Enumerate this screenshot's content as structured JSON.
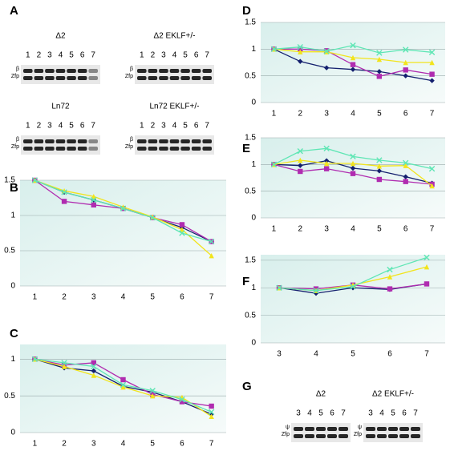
{
  "chart_data": [
    {
      "panel": "B",
      "type": "line",
      "categories": [
        1,
        2,
        3,
        4,
        5,
        6,
        7
      ],
      "ylim": [
        0,
        1.5
      ],
      "yticks": [
        0,
        0.5,
        1,
        1.5
      ],
      "grid": true,
      "series": [
        {
          "color": "#14206e",
          "marker": "diamond",
          "values": [
            1.5,
            1.33,
            1.22,
            1.1,
            0.97,
            0.83,
            0.63
          ]
        },
        {
          "color": "#b02cb0",
          "marker": "square",
          "values": [
            1.5,
            1.2,
            1.15,
            1.1,
            0.97,
            0.87,
            0.63
          ]
        },
        {
          "color": "#f2e41c",
          "marker": "triangle",
          "values": [
            1.5,
            1.35,
            1.27,
            1.12,
            0.98,
            0.8,
            0.43
          ]
        },
        {
          "color": "#5ee6b4",
          "marker": "x",
          "values": [
            1.5,
            1.33,
            1.22,
            1.1,
            0.97,
            0.75,
            0.63
          ]
        }
      ]
    },
    {
      "panel": "C",
      "type": "line",
      "categories": [
        1,
        2,
        3,
        4,
        5,
        6,
        7
      ],
      "ylim": [
        0,
        1.2
      ],
      "yticks": [
        0,
        0.5,
        1
      ],
      "grid": true,
      "series": [
        {
          "color": "#14206e",
          "marker": "diamond",
          "values": [
            1,
            0.88,
            0.84,
            0.63,
            0.55,
            0.42,
            0.25
          ]
        },
        {
          "color": "#b02cb0",
          "marker": "square",
          "values": [
            1,
            0.92,
            0.95,
            0.72,
            0.52,
            0.42,
            0.36
          ]
        },
        {
          "color": "#f2e41c",
          "marker": "triangle",
          "values": [
            1,
            0.9,
            0.78,
            0.62,
            0.5,
            0.48,
            0.22
          ]
        },
        {
          "color": "#5ee6b4",
          "marker": "x",
          "values": [
            1,
            0.95,
            0.9,
            0.65,
            0.57,
            0.45,
            0.28
          ]
        }
      ]
    },
    {
      "panel": "D",
      "type": "line",
      "categories": [
        1,
        2,
        3,
        4,
        5,
        6,
        7
      ],
      "ylim": [
        0,
        1.5
      ],
      "yticks": [
        0,
        0.5,
        1,
        1.5
      ],
      "grid": true,
      "series": [
        {
          "color": "#14206e",
          "marker": "diamond",
          "values": [
            1,
            0.77,
            0.65,
            0.62,
            0.58,
            0.5,
            0.41
          ]
        },
        {
          "color": "#b02cb0",
          "marker": "square",
          "values": [
            1,
            1,
            0.97,
            0.71,
            0.49,
            0.61,
            0.53
          ]
        },
        {
          "color": "#f2e41c",
          "marker": "triangle",
          "values": [
            1,
            0.95,
            0.95,
            0.84,
            0.81,
            0.75,
            0.75
          ]
        },
        {
          "color": "#5ee6b4",
          "marker": "x",
          "values": [
            1,
            1.04,
            0.96,
            1.07,
            0.93,
            0.99,
            0.94
          ]
        }
      ]
    },
    {
      "panel": "E",
      "type": "line",
      "categories": [
        1,
        2,
        3,
        4,
        5,
        6,
        7
      ],
      "ylim": [
        0,
        1.5
      ],
      "yticks": [
        0,
        0.5,
        1,
        1.5
      ],
      "grid": true,
      "series": [
        {
          "color": "#14206e",
          "marker": "diamond",
          "values": [
            1,
            0.98,
            1.07,
            0.93,
            0.88,
            0.77,
            0.65
          ]
        },
        {
          "color": "#b02cb0",
          "marker": "square",
          "values": [
            1,
            0.87,
            0.92,
            0.83,
            0.72,
            0.68,
            0.63
          ]
        },
        {
          "color": "#f2e41c",
          "marker": "triangle",
          "values": [
            1,
            1.08,
            1.02,
            1.02,
            0.97,
            0.98,
            0.6
          ]
        },
        {
          "color": "#5ee6b4",
          "marker": "x",
          "values": [
            1,
            1.25,
            1.3,
            1.15,
            1.08,
            1.03,
            0.92
          ]
        }
      ]
    },
    {
      "panel": "F",
      "type": "line",
      "categories": [
        3,
        4,
        5,
        6,
        7
      ],
      "ylim": [
        0,
        1.6
      ],
      "yticks": [
        0,
        0.5,
        1,
        1.5
      ],
      "grid": true,
      "series": [
        {
          "color": "#14206e",
          "marker": "diamond",
          "values": [
            1,
            0.9,
            1.0,
            0.97,
            1.07
          ]
        },
        {
          "color": "#b02cb0",
          "marker": "square",
          "values": [
            1,
            0.98,
            1.05,
            0.98,
            1.07
          ]
        },
        {
          "color": "#f2e41c",
          "marker": "triangle",
          "values": [
            1,
            0.95,
            1.05,
            1.2,
            1.38
          ]
        },
        {
          "color": "#5ee6b4",
          "marker": "x",
          "values": [
            1,
            0.95,
            1.02,
            1.33,
            1.55
          ]
        }
      ]
    }
  ],
  "gel_panels": [
    {
      "panel": "A",
      "blots": [
        {
          "title": "Δ2",
          "lanes": [
            1,
            2,
            3,
            4,
            5,
            6,
            7
          ],
          "bands": [
            "β",
            "Zfp"
          ]
        },
        {
          "title": "Δ2 EKLF+/-",
          "lanes": [
            1,
            2,
            3,
            4,
            5,
            6,
            7
          ],
          "bands": [
            "β",
            "Zfp"
          ]
        },
        {
          "title": "Ln72",
          "lanes": [
            1,
            2,
            3,
            4,
            5,
            6,
            7
          ],
          "bands": [
            "β",
            "Zfp"
          ]
        },
        {
          "title": "Ln72 EKLF+/-",
          "lanes": [
            1,
            2,
            3,
            4,
            5,
            6,
            7
          ],
          "bands": [
            "β",
            "Zfp"
          ]
        }
      ]
    },
    {
      "panel": "G",
      "blots": [
        {
          "title": "Δ2",
          "lanes": [
            3,
            4,
            5,
            6,
            7
          ],
          "bands": [
            "ψ",
            "Zfp"
          ]
        },
        {
          "title": "Δ2 EKLF+/-",
          "lanes": [
            3,
            4,
            5,
            6,
            7
          ],
          "bands": [
            "ψ",
            "Zfp"
          ]
        }
      ]
    }
  ]
}
